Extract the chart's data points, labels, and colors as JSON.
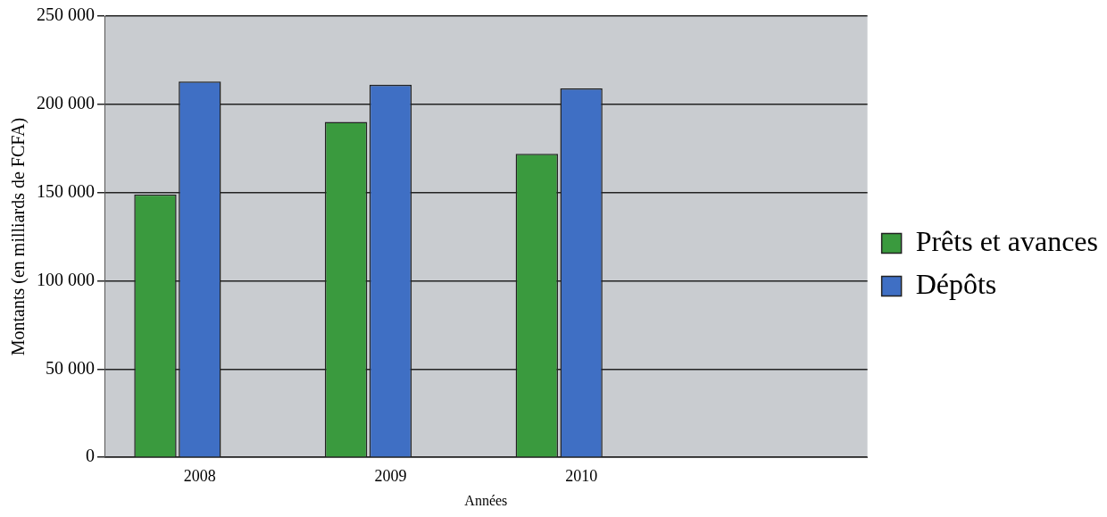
{
  "chart_data": {
    "type": "bar",
    "xlabel": "Années",
    "ylabel": "Montants (en milliards de FCFA)",
    "categories": [
      "2008",
      "2009",
      "2010",
      null
    ],
    "series": [
      {
        "name": "Prêts et avances",
        "color": "#3a9a3e",
        "values": [
          149000,
          190000,
          172000,
          null
        ]
      },
      {
        "name": "Dépôts",
        "color": "#3f6fc4",
        "values": [
          213000,
          211000,
          209000,
          null
        ]
      },
      {
        "color": "#e6e2a0",
        "values": [
          0,
          0,
          0,
          null
        ]
      }
    ],
    "ylim": [
      0,
      250000
    ],
    "yticks": [
      {
        "value": 0,
        "label": "0"
      },
      {
        "value": 50000,
        "label": "50 000"
      },
      {
        "value": 100000,
        "label": "100 000"
      },
      {
        "value": 150000,
        "label": "150 000"
      },
      {
        "value": 200000,
        "label": "200 000"
      },
      {
        "value": 250000,
        "label": "250 000"
      }
    ],
    "grid": "y",
    "legend": "right"
  }
}
